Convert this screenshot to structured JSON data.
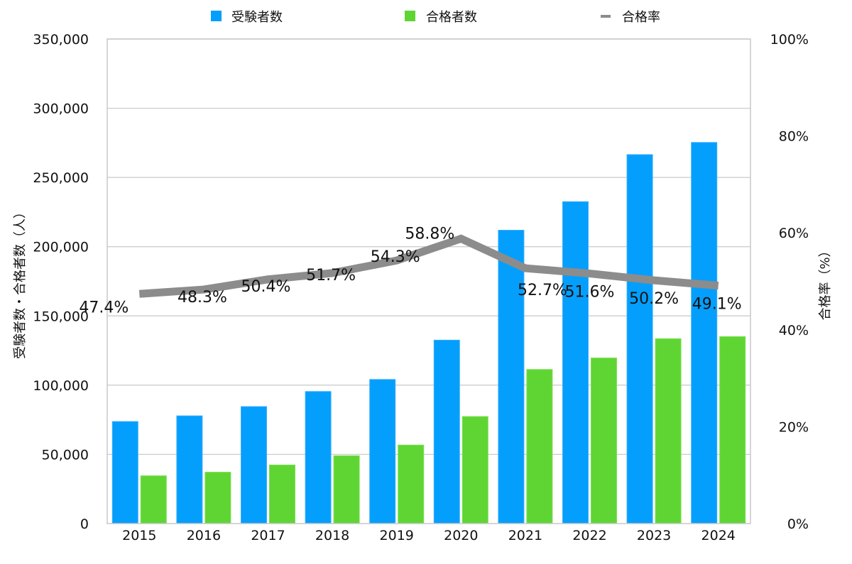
{
  "chart_data": {
    "type": "bar",
    "combo": "bar+line (dual axis)",
    "title": "",
    "categories": [
      "2015",
      "2016",
      "2017",
      "2018",
      "2019",
      "2020",
      "2021",
      "2022",
      "2023",
      "2024"
    ],
    "series": [
      {
        "name": "受験者数",
        "type": "bar",
        "axis": "left",
        "color": "#049ffd",
        "values": [
          73700,
          77800,
          84500,
          95400,
          104100,
          132500,
          211900,
          232500,
          266500,
          275300
        ]
      },
      {
        "name": "合格者数",
        "type": "bar",
        "axis": "left",
        "color": "#5fd534",
        "values": [
          34500,
          37100,
          42300,
          49000,
          56700,
          77300,
          111300,
          119600,
          133500,
          135000
        ]
      },
      {
        "name": "合格率",
        "type": "line",
        "axis": "right",
        "color": "#8c8c8c",
        "values": [
          47.4,
          48.3,
          50.4,
          51.7,
          54.3,
          58.8,
          52.7,
          51.6,
          50.2,
          49.1
        ],
        "data_labels": [
          "47.4%",
          "48.3%",
          "50.4%",
          "51.7%",
          "54.3%",
          "58.8%",
          "52.7%",
          "51.6%",
          "50.2%",
          "49.1%"
        ]
      }
    ],
    "ylabel": "受験者数・合格者数（人）",
    "y2label": "合格率（%）",
    "xlabel": "",
    "ylim": [
      0,
      350000
    ],
    "y2lim": [
      0,
      100
    ],
    "yticks": [
      "0",
      "50,000",
      "100,000",
      "150,000",
      "200,000",
      "250,000",
      "300,000",
      "350,000"
    ],
    "ytick_values": [
      0,
      50000,
      100000,
      150000,
      200000,
      250000,
      300000,
      350000
    ],
    "y2ticks": [
      "0%",
      "20%",
      "40%",
      "60%",
      "80%",
      "100%"
    ],
    "y2tick_values": [
      0,
      20,
      40,
      60,
      80,
      100
    ],
    "grid": true,
    "legend": {
      "position": "top",
      "entries": [
        {
          "label": "受験者数",
          "marker": "square",
          "color": "#049ffd"
        },
        {
          "label": "合格者数",
          "marker": "square",
          "color": "#5fd534"
        },
        {
          "label": "合格率",
          "marker": "line",
          "color": "#8c8c8c"
        }
      ]
    },
    "colors": {
      "grid": "#c8c8c8",
      "frame": "#c8c8c8",
      "text": "#111111"
    }
  }
}
